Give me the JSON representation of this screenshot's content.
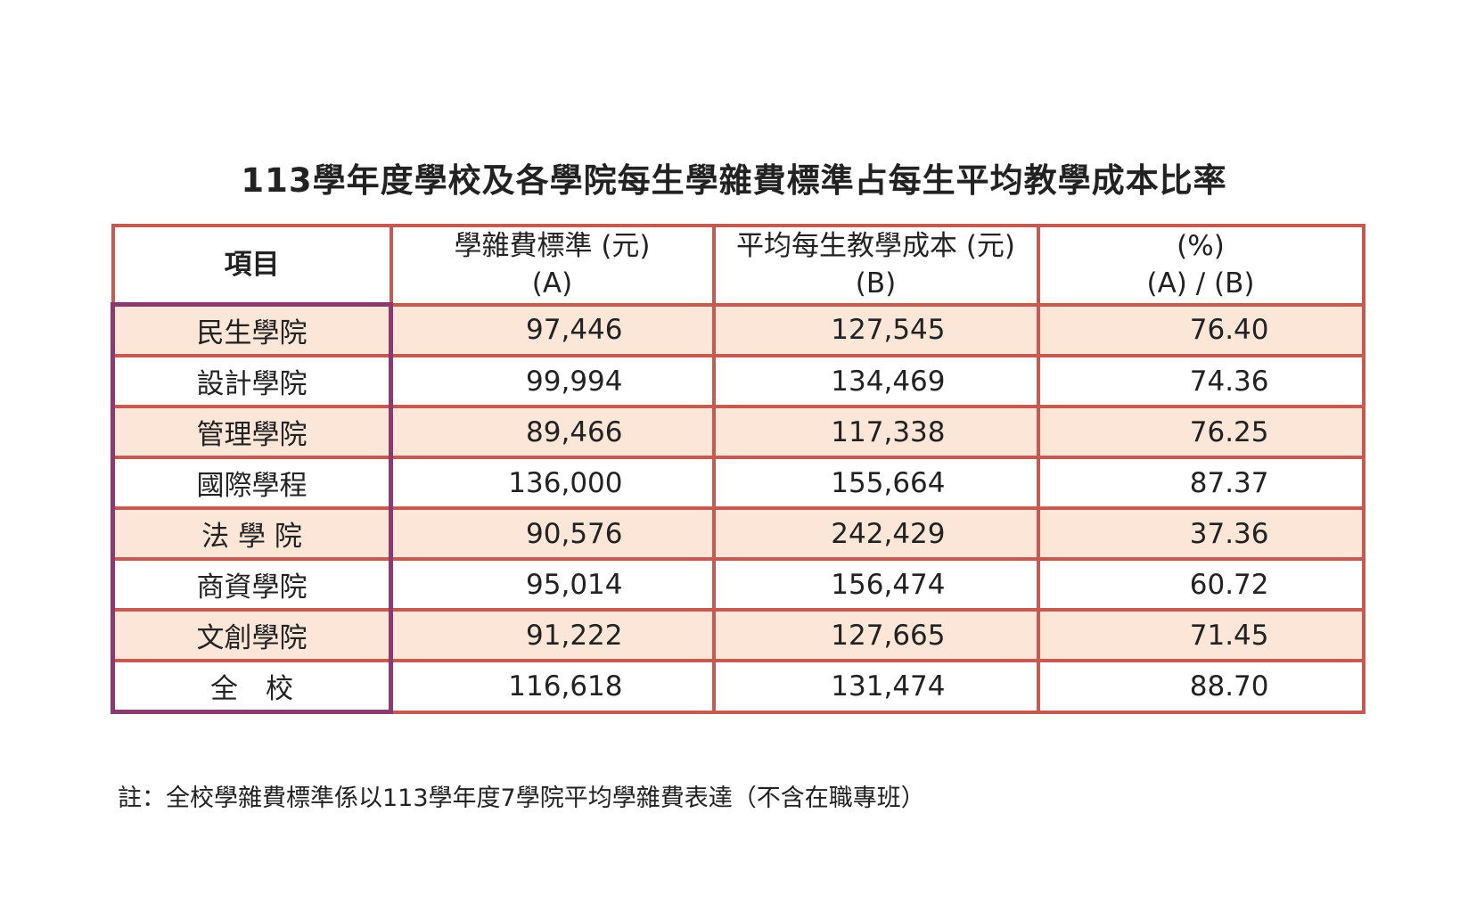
{
  "title": "113學年度學校及各學院每生學雜費標準占每生平均教學成本比率",
  "table": {
    "headers": {
      "item": "項目",
      "fee_line1": "學雜費標準 (元)",
      "fee_line2": "(A)",
      "cost_line1": "平均每生教學成本 (元)",
      "cost_line2": "(B)",
      "ratio_line1": "(%)",
      "ratio_line2": "(A) / (B)"
    },
    "rows": [
      {
        "name": "民生學院",
        "fee": "97,446",
        "cost": "127,545",
        "ratio": "76.40"
      },
      {
        "name": "設計學院",
        "fee": "99,994",
        "cost": "134,469",
        "ratio": "74.36"
      },
      {
        "name": "管理學院",
        "fee": "89,466",
        "cost": "117,338",
        "ratio": "76.25"
      },
      {
        "name": "國際學程",
        "fee": "136,000",
        "cost": "155,664",
        "ratio": "87.37"
      },
      {
        "name": "法 學 院",
        "fee": "90,576",
        "cost": "242,429",
        "ratio": "37.36"
      },
      {
        "name": "商資學院",
        "fee": "95,014",
        "cost": "156,474",
        "ratio": "60.72"
      },
      {
        "name": "文創學院",
        "fee": "91,222",
        "cost": "127,665",
        "ratio": "71.45"
      },
      {
        "name": "全　校",
        "fee": "116,618",
        "cost": "131,474",
        "ratio": "88.70"
      }
    ]
  },
  "note": "註：全校學雜費標準係以113學年度7學院平均學雜費表達（不含在職專班）",
  "colors": {
    "border": "#c45a52",
    "name_border": "#8a3a6e",
    "row_shade": "#fce6d8"
  }
}
